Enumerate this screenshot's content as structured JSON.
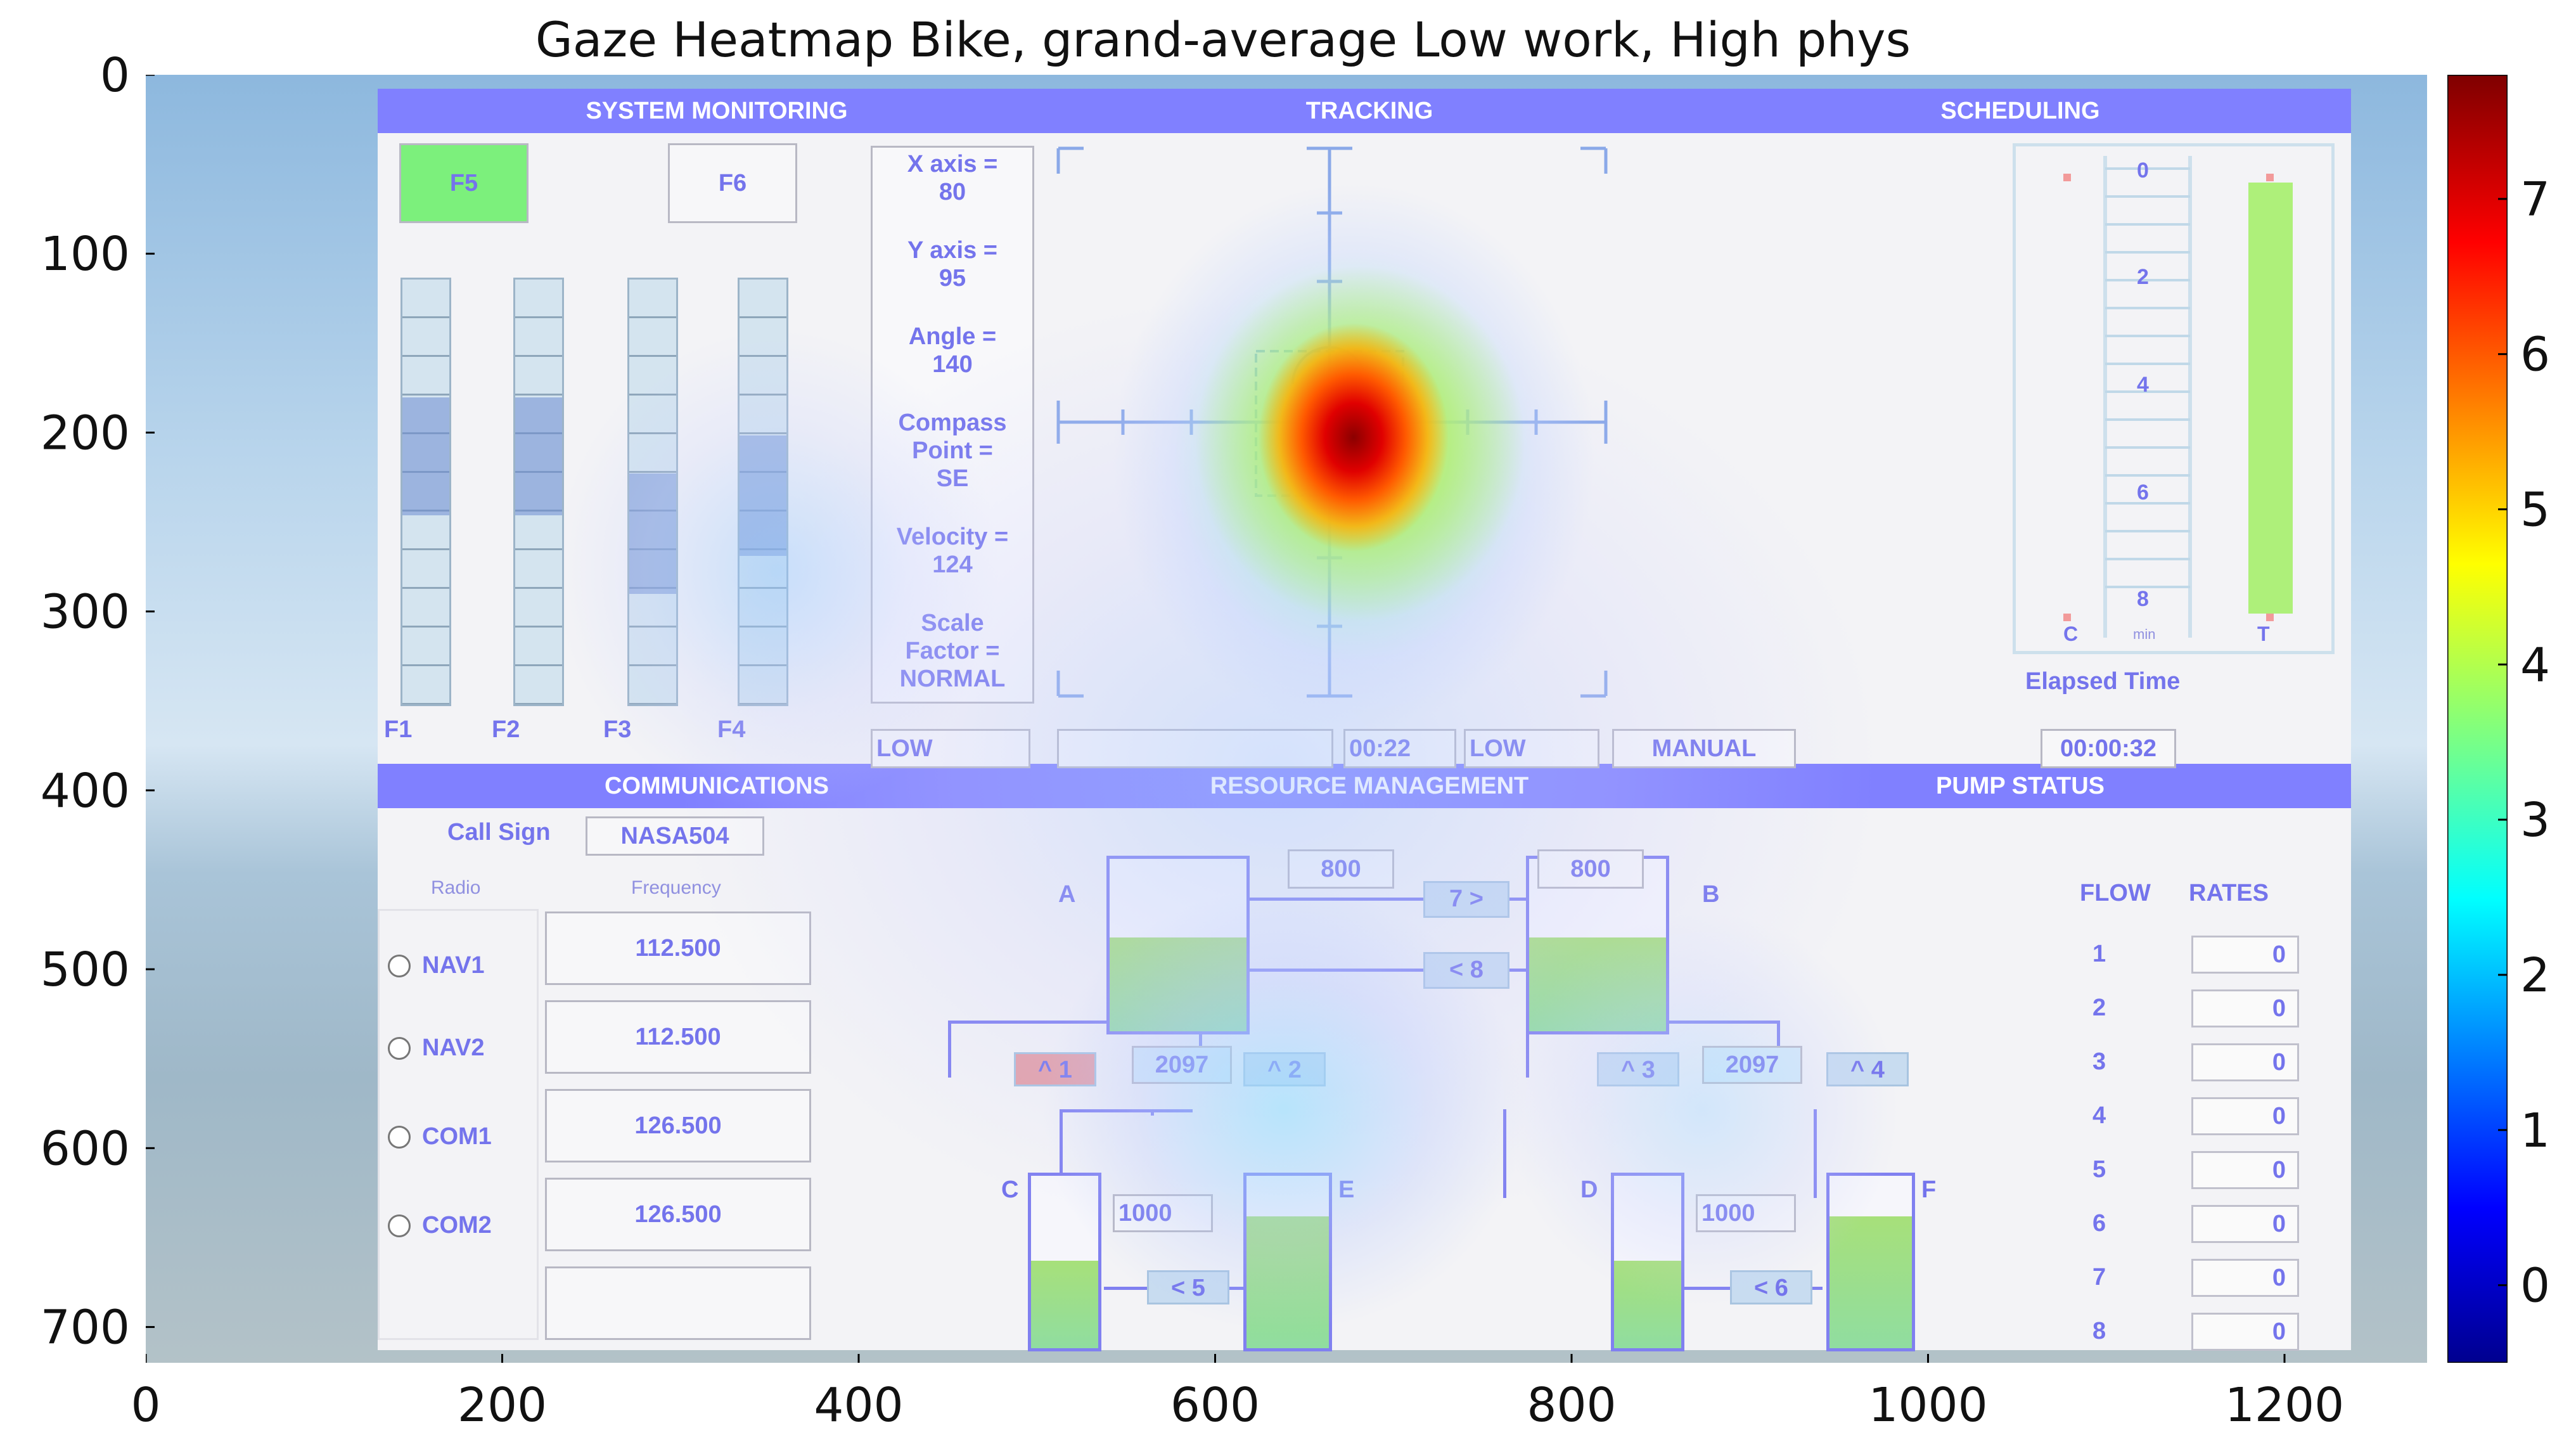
{
  "chart_data": {
    "type": "heatmap",
    "title": "Gaze Heatmap Bike, grand-average Low work, High phys",
    "x_ticks": [
      0,
      200,
      400,
      600,
      800,
      1000,
      1200
    ],
    "y_ticks": [
      0,
      100,
      200,
      300,
      400,
      500,
      600,
      700
    ],
    "xlim": [
      0,
      1280
    ],
    "ylim": [
      720,
      0
    ],
    "colorbar": {
      "ticks": [
        0,
        1,
        2,
        3,
        4,
        5,
        6,
        7
      ],
      "range": [
        -0.5,
        7.8
      ],
      "colormap": "jet"
    },
    "hotspots": [
      {
        "x": 665,
        "y": 195,
        "value": 7.6
      },
      {
        "x": 640,
        "y": 210,
        "value": 4.5
      },
      {
        "x": 300,
        "y": 250,
        "value": 1.6
      },
      {
        "x": 490,
        "y": 560,
        "value": 2.2
      },
      {
        "x": 820,
        "y": 560,
        "value": 1.6
      }
    ]
  },
  "ui": {
    "sections": {
      "system_monitoring": "SYSTEM MONITORING",
      "tracking": "TRACKING",
      "scheduling": "SCHEDULING",
      "communications": "COMMUNICATIONS",
      "resource_management": "RESOURCE MANAGEMENT",
      "pump_status": "PUMP STATUS"
    },
    "sysmon": {
      "f5": "F5",
      "f6": "F6",
      "scales": [
        "F1",
        "F2",
        "F3",
        "F4"
      ],
      "scale_levels": [
        0.3,
        0.3,
        0.5,
        0.35
      ]
    },
    "info": {
      "x_axis": "X axis =",
      "x_val": "80",
      "y_axis": "Y axis =",
      "y_val": "95",
      "angle": "Angle =",
      "angle_val": "140",
      "compass": "Compass",
      "compass2": "Point =",
      "compass_val": "SE",
      "velocity": "Velocity =",
      "velocity_val": "124",
      "scale": "Scale",
      "scale2": "Factor =",
      "scale_val": "NORMAL"
    },
    "status_row": {
      "low1": "LOW",
      "time": "00:22",
      "low2": "LOW",
      "manual": "MANUAL"
    },
    "scheduling": {
      "marks": [
        "0",
        "2",
        "4",
        "6",
        "8"
      ],
      "c": "C",
      "min": "min",
      "t": "T",
      "elapsed_label": "Elapsed Time",
      "elapsed_val": "00:00:32"
    },
    "comms": {
      "call_sign_label": "Call Sign",
      "call_sign": "NASA504",
      "radio_header": "Radio",
      "freq_header": "Frequency",
      "rows": [
        {
          "radio": "NAV1",
          "freq": "112.500"
        },
        {
          "radio": "NAV2",
          "freq": "112.500"
        },
        {
          "radio": "COM1",
          "freq": "126.500"
        },
        {
          "radio": "COM2",
          "freq": "126.500"
        }
      ]
    },
    "resman": {
      "tank_a": "A",
      "tank_b": "B",
      "tank_c": "C",
      "tank_d": "D",
      "tank_e": "E",
      "tank_f": "F",
      "a_val": "800",
      "b_val": "800",
      "c_val": "1000",
      "d_val": "1000",
      "left_total": "2097",
      "right_total": "2097",
      "pump7": "7 >",
      "pump8": "< 8",
      "pump1": "^ 1",
      "pump2": "^ 2",
      "pump3": "^ 3",
      "pump4": "^ 4",
      "pump5": "< 5",
      "pump6": "< 6"
    },
    "pump_status": {
      "flow": "FLOW",
      "rates": "RATES",
      "rows": [
        {
          "n": "1",
          "v": "0"
        },
        {
          "n": "2",
          "v": "0"
        },
        {
          "n": "3",
          "v": "0"
        },
        {
          "n": "4",
          "v": "0"
        },
        {
          "n": "5",
          "v": "0"
        },
        {
          "n": "6",
          "v": "0"
        },
        {
          "n": "7",
          "v": "0"
        },
        {
          "n": "8",
          "v": "0"
        }
      ]
    }
  }
}
